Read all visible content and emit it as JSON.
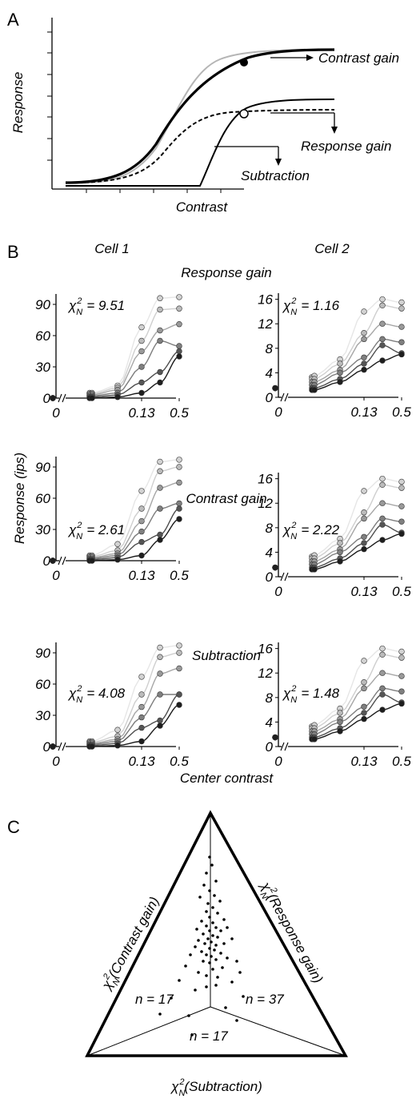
{
  "panel_labels": {
    "a": "A",
    "b": "B",
    "c": "C"
  },
  "panelA": {
    "ylabel": "Response",
    "xlabel": "Contrast",
    "annotations": [
      "Contrast gain",
      "Response gain",
      "Subtraction"
    ]
  },
  "panelB": {
    "col_titles": [
      "Cell 1",
      "Cell 2"
    ],
    "row_titles": [
      "Response gain",
      "Contrast gain",
      "Subtraction"
    ],
    "ylabel": "Response (ips)",
    "xlabel": "Center contrast",
    "chi_label": "χ",
    "chi_sub": "N",
    "chi_sup": "2",
    "chi_values": [
      [
        "= 9.51",
        "= 1.16"
      ],
      [
        "= 2.61",
        "= 2.22"
      ],
      [
        "= 4.08",
        "= 1.48"
      ]
    ],
    "xticks": [
      "0",
      "0.13",
      "0.5"
    ],
    "cell1_yticks": [
      "0",
      "30",
      "60",
      "90"
    ],
    "cell2_yticks": [
      "0",
      "4",
      "8",
      "12",
      "16"
    ]
  },
  "panelC": {
    "side_labels": [
      "(Contrast gain)",
      "(Response gain)",
      "(Subtraction)"
    ],
    "counts": [
      "n = 17",
      "n = 37",
      "n = 17"
    ]
  },
  "chart_data": [
    {
      "type": "line",
      "title": "",
      "xlabel": "Contrast",
      "ylabel": "Response",
      "series": [
        {
          "name": "",
          "style": "thick black",
          "x": [
            0.0,
            0.1,
            0.2,
            0.3,
            0.4,
            0.5,
            0.6,
            0.7,
            0.8,
            0.9,
            1.0
          ],
          "y": [
            0.02,
            0.04,
            0.1,
            0.3,
            0.6,
            0.82,
            0.93,
            0.97,
            0.99,
            1.0,
            1.0
          ]
        },
        {
          "name": "",
          "style": "gray",
          "x": [
            0.0,
            0.1,
            0.2,
            0.3,
            0.4,
            0.5,
            0.6,
            0.7,
            0.8,
            0.9,
            1.0
          ],
          "y": [
            0.01,
            0.02,
            0.04,
            0.09,
            0.22,
            0.48,
            0.75,
            0.9,
            0.96,
            0.99,
            1.0
          ]
        },
        {
          "name": "",
          "style": "black",
          "x": [
            0.0,
            0.1,
            0.2,
            0.3,
            0.4,
            0.5,
            0.6,
            0.7,
            0.8,
            0.9,
            1.0
          ],
          "y": [
            0.0,
            0.0,
            0.0,
            0.0,
            0.15,
            0.42,
            0.55,
            0.6,
            0.62,
            0.63,
            0.63
          ]
        },
        {
          "name": "",
          "style": "dashed",
          "x": [
            0.0,
            0.1,
            0.2,
            0.3,
            0.4,
            0.5,
            0.6,
            0.7,
            0.8,
            0.9,
            1.0
          ],
          "y": [
            0.01,
            0.03,
            0.07,
            0.2,
            0.38,
            0.5,
            0.55,
            0.57,
            0.58,
            0.58,
            0.58
          ]
        }
      ]
    },
    {
      "type": "scatter",
      "title": "Response gain",
      "xlabel": "",
      "ylabel": "",
      "x": [
        0.0,
        0.02,
        0.04,
        0.08,
        0.13,
        0.25,
        0.5
      ],
      "series": [
        {
          "name": "",
          "values": [
            0,
            5,
            5,
            12,
            68,
            96,
            97
          ]
        },
        {
          "name": "",
          "values": [
            0,
            4,
            4,
            10,
            55,
            85,
            86
          ]
        },
        {
          "name": "",
          "values": [
            0,
            3,
            3,
            8,
            45,
            65,
            71
          ]
        },
        {
          "name": "",
          "values": [
            0,
            2,
            2,
            5,
            30,
            55,
            50
          ]
        },
        {
          "name": "",
          "values": [
            0,
            1,
            1,
            3,
            15,
            25,
            45
          ]
        },
        {
          "name": "",
          "values": [
            0,
            0,
            0,
            1,
            5,
            15,
            40
          ]
        }
      ],
      "ylim": [
        0,
        100
      ]
    },
    {
      "type": "scatter",
      "title": "Response gain",
      "xlabel": "",
      "ylabel": "",
      "x": [
        0.0,
        0.02,
        0.04,
        0.08,
        0.13,
        0.25,
        0.5
      ],
      "series": [
        {
          "name": "",
          "values": [
            1.5,
            3.3,
            3.5,
            6.2,
            14,
            16,
            15.5
          ]
        },
        {
          "name": "",
          "values": [
            1.5,
            3,
            3,
            5.5,
            10.5,
            15,
            14.5
          ]
        },
        {
          "name": "",
          "values": [
            1.5,
            2.5,
            2.5,
            4.5,
            9.5,
            12,
            11.5
          ]
        },
        {
          "name": "",
          "values": [
            1.5,
            2,
            2,
            4,
            6.5,
            9.5,
            9
          ]
        },
        {
          "name": "",
          "values": [
            1.5,
            1.5,
            1.5,
            3,
            5.5,
            8.5,
            7.2
          ]
        },
        {
          "name": "",
          "values": [
            1.5,
            1.2,
            1.2,
            2.5,
            4.5,
            6,
            7
          ]
        }
      ],
      "ylim": [
        0,
        17
      ]
    },
    {
      "type": "scatter",
      "title": "Contrast gain",
      "xlabel": "",
      "ylabel": "Response (ips)",
      "x": [
        0.0,
        0.02,
        0.04,
        0.08,
        0.13,
        0.25,
        0.5
      ],
      "series": [
        {
          "name": "",
          "values": [
            0,
            5,
            5,
            16,
            67,
            95,
            97
          ]
        },
        {
          "name": "",
          "values": [
            0,
            4,
            4,
            10,
            50,
            86,
            90
          ]
        },
        {
          "name": "",
          "values": [
            0,
            3,
            3,
            7,
            38,
            70,
            75
          ]
        },
        {
          "name": "",
          "values": [
            0,
            2,
            2,
            5,
            28,
            50,
            55
          ]
        },
        {
          "name": "",
          "values": [
            0,
            1,
            1,
            3,
            18,
            25,
            50
          ]
        },
        {
          "name": "",
          "values": [
            0,
            0,
            0,
            1,
            5,
            20,
            40
          ]
        }
      ],
      "ylim": [
        0,
        100
      ]
    },
    {
      "type": "scatter",
      "title": "Contrast gain",
      "xlabel": "",
      "ylabel": "",
      "x": [
        0.0,
        0.02,
        0.04,
        0.08,
        0.13,
        0.25,
        0.5
      ],
      "series": [
        {
          "name": "",
          "values": [
            1.5,
            3.3,
            3.5,
            6.2,
            14,
            16,
            15.5
          ]
        },
        {
          "name": "",
          "values": [
            1.5,
            3,
            3,
            5.5,
            10.5,
            15,
            14.5
          ]
        },
        {
          "name": "",
          "values": [
            1.5,
            2.5,
            2.5,
            4.5,
            9.5,
            12,
            11.5
          ]
        },
        {
          "name": "",
          "values": [
            1.5,
            2,
            2,
            4,
            6.5,
            9.5,
            9
          ]
        },
        {
          "name": "",
          "values": [
            1.5,
            1.5,
            1.5,
            3,
            5.5,
            8.5,
            7.2
          ]
        },
        {
          "name": "",
          "values": [
            1.5,
            1.2,
            1.2,
            2.5,
            4.5,
            6,
            7
          ]
        }
      ],
      "ylim": [
        0,
        17
      ]
    },
    {
      "type": "scatter",
      "title": "Subtraction",
      "xlabel": "Center contrast",
      "ylabel": "",
      "x": [
        0.0,
        0.02,
        0.04,
        0.08,
        0.13,
        0.25,
        0.5
      ],
      "series": [
        {
          "name": "",
          "values": [
            0,
            5,
            5,
            16,
            67,
            95,
            97
          ]
        },
        {
          "name": "",
          "values": [
            0,
            4,
            4,
            10,
            50,
            86,
            90
          ]
        },
        {
          "name": "",
          "values": [
            0,
            3,
            3,
            7,
            38,
            70,
            75
          ]
        },
        {
          "name": "",
          "values": [
            0,
            2,
            2,
            5,
            28,
            50,
            50
          ]
        },
        {
          "name": "",
          "values": [
            0,
            1,
            1,
            3,
            18,
            25,
            50
          ]
        },
        {
          "name": "",
          "values": [
            0,
            0,
            0,
            1,
            5,
            20,
            40
          ]
        }
      ],
      "ylim": [
        0,
        100
      ]
    },
    {
      "type": "scatter",
      "title": "Subtraction",
      "xlabel": "Center contrast",
      "ylabel": "",
      "x": [
        0.0,
        0.02,
        0.04,
        0.08,
        0.13,
        0.25,
        0.5
      ],
      "series": [
        {
          "name": "",
          "values": [
            1.5,
            3.3,
            3.5,
            6.2,
            14,
            16,
            15.5
          ]
        },
        {
          "name": "",
          "values": [
            1.5,
            3,
            3,
            5.5,
            10.5,
            15,
            14.5
          ]
        },
        {
          "name": "",
          "values": [
            1.5,
            2.5,
            2.5,
            4.5,
            9.5,
            12,
            11.5
          ]
        },
        {
          "name": "",
          "values": [
            1.5,
            2,
            2,
            4,
            6.5,
            9.5,
            9
          ]
        },
        {
          "name": "",
          "values": [
            1.5,
            1.5,
            1.5,
            3,
            5.5,
            8.5,
            7.2
          ]
        },
        {
          "name": "",
          "values": [
            1.5,
            1.2,
            1.2,
            2.5,
            4.5,
            6,
            7
          ]
        }
      ],
      "ylim": [
        0,
        17
      ]
    }
  ]
}
